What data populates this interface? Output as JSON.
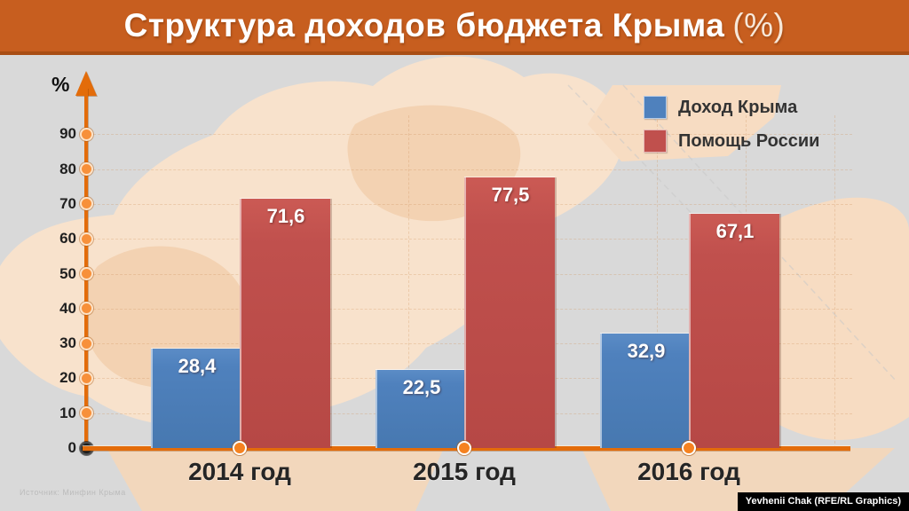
{
  "title": {
    "main": "Структура доходов бюджета Крыма",
    "suffix": "(%)"
  },
  "legend": [
    {
      "label": "Доход Крыма",
      "color": "#4f81bd"
    },
    {
      "label": "Помощь России",
      "color": "#c0504d"
    }
  ],
  "chart_data": {
    "type": "bar",
    "title": "Структура доходов бюджета Крыма (%)",
    "ylabel": "%",
    "ylim": [
      0,
      100
    ],
    "yticks": [
      0,
      10,
      20,
      30,
      40,
      50,
      60,
      70,
      80,
      90
    ],
    "grid": "faint dashed",
    "legend_position": "top-right",
    "categories": [
      "2014 год",
      "2015 год",
      "2016 год"
    ],
    "series": [
      {
        "name": "Доход Крыма",
        "color": "#4f81bd",
        "values": [
          28.4,
          22.5,
          32.9
        ]
      },
      {
        "name": "Помощь России",
        "color": "#c0504d",
        "values": [
          71.6,
          77.5,
          67.1
        ]
      }
    ],
    "value_labels": [
      [
        "28,4",
        "71,6"
      ],
      [
        "22,5",
        "77,5"
      ],
      [
        "32,9",
        "67,1"
      ]
    ]
  },
  "footer": {
    "source": "Источник: Минфин Крыма",
    "credit": "Yevhenii Chak (RFE/RL Graphics)"
  },
  "colors": {
    "header": "#c75e1f",
    "axis": "#e36c0a",
    "bar_blue": "#4f81bd",
    "bar_red": "#c0504d",
    "background": "#d9d9d9",
    "map": "#f7ddc3"
  }
}
